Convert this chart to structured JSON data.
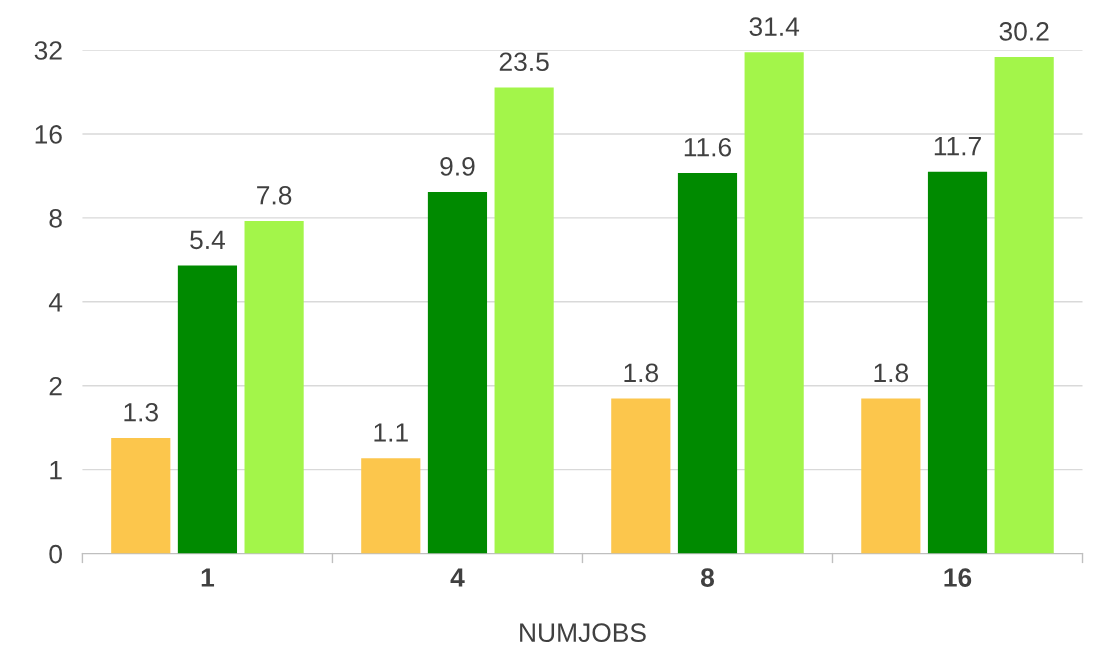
{
  "chart_data": {
    "type": "bar",
    "xlabel": "NUMJOBS",
    "categories": [
      "1",
      "4",
      "8",
      "16"
    ],
    "series": [
      {
        "color": "#fcc64c",
        "values": [
          1.3,
          1.1,
          1.8,
          1.8
        ]
      },
      {
        "color": "#008a00",
        "values": [
          5.4,
          9.9,
          11.6,
          11.7
        ]
      },
      {
        "color": "#a3f54a",
        "values": [
          7.8,
          23.5,
          31.4,
          30.2
        ]
      }
    ],
    "log": "y",
    "ylim": [
      0.5,
      32
    ],
    "yticks": [
      {
        "value": 0.5,
        "label": "0"
      },
      1,
      2,
      4,
      8,
      16,
      32
    ],
    "grid": "y",
    "data_labels": true
  }
}
